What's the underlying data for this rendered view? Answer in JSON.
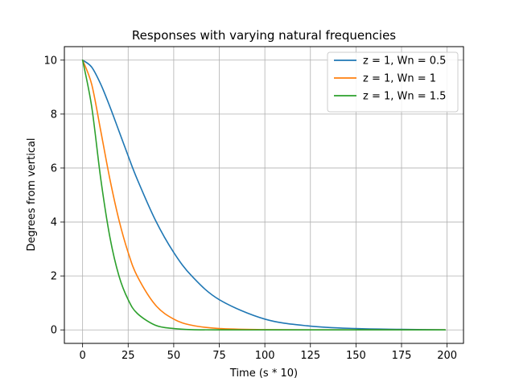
{
  "chart_data": {
    "type": "line",
    "title": "Responses with varying natural frequencies",
    "xlabel": "Time (s * 10)",
    "ylabel": "Degrees from vertical",
    "xlim": [
      -10,
      209
    ],
    "ylim": [
      -0.5,
      10.5
    ],
    "xticks": [
      0,
      25,
      50,
      75,
      100,
      125,
      150,
      175,
      200
    ],
    "yticks": [
      0,
      2,
      4,
      6,
      8,
      10
    ],
    "grid": true,
    "legend_position": "upper-right",
    "x": [
      0,
      5,
      10,
      15,
      20,
      25,
      30,
      40,
      50,
      60,
      75,
      100,
      125,
      150,
      175,
      199
    ],
    "series": [
      {
        "name": "z = 1, Wn = 0.5",
        "color": "#1f77b4",
        "values": [
          10,
          9.74,
          9.1,
          8.27,
          7.36,
          6.45,
          5.58,
          4.06,
          2.87,
          1.99,
          1.12,
          0.4,
          0.14,
          0.05,
          0.02,
          0.0
        ]
      },
      {
        "name": "z = 1, Wn = 1",
        "color": "#ff7f0e",
        "values": [
          10,
          9.1,
          7.36,
          5.58,
          4.06,
          2.87,
          1.99,
          0.92,
          0.4,
          0.17,
          0.05,
          0.01,
          0.0,
          0.0,
          0.0,
          0.0
        ]
      },
      {
        "name": "z = 1, Wn = 1.5",
        "color": "#2ca02c",
        "values": [
          10,
          8.27,
          5.58,
          3.43,
          1.99,
          1.12,
          0.61,
          0.17,
          0.05,
          0.01,
          0.0,
          0.0,
          0.0,
          0.0,
          0.0,
          0.0
        ]
      }
    ]
  }
}
